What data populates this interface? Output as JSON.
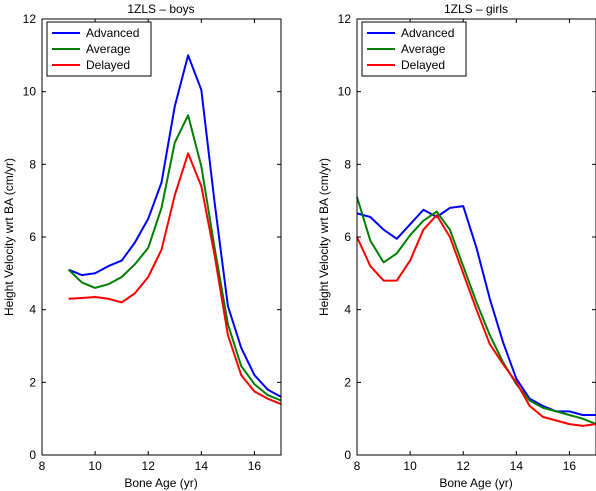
{
  "chart_data": [
    {
      "type": "line",
      "title": "1ZLS – boys",
      "xlabel": "Bone Age (yr)",
      "ylabel": "Height Velocity wrt BA (cm/yr)",
      "xlim": [
        8,
        17
      ],
      "ylim": [
        0,
        12
      ],
      "xticks": [
        8,
        10,
        12,
        14,
        16
      ],
      "yticks": [
        0,
        2,
        4,
        6,
        8,
        10,
        12
      ],
      "grid": false,
      "legend_position": "top-left",
      "series": [
        {
          "name": "Advanced",
          "color": "#0000ff",
          "x": [
            9,
            9.5,
            10,
            10.5,
            11,
            11.5,
            12,
            12.5,
            13,
            13.5,
            14,
            14.5,
            15,
            15.5,
            16,
            16.5,
            17
          ],
          "y": [
            5.1,
            4.95,
            5.0,
            5.2,
            5.35,
            5.85,
            6.5,
            7.5,
            9.6,
            11.0,
            10.05,
            6.95,
            4.1,
            2.95,
            2.2,
            1.8,
            1.6
          ]
        },
        {
          "name": "Average",
          "color": "#008000",
          "x": [
            9,
            9.5,
            10,
            10.5,
            11,
            11.5,
            12,
            12.5,
            13,
            13.5,
            14,
            14.5,
            15,
            15.5,
            16,
            16.5,
            17
          ],
          "y": [
            5.1,
            4.75,
            4.6,
            4.7,
            4.9,
            5.25,
            5.7,
            6.8,
            8.6,
            9.35,
            7.95,
            5.7,
            3.6,
            2.45,
            1.95,
            1.65,
            1.5
          ]
        },
        {
          "name": "Delayed",
          "color": "#ff0000",
          "x": [
            9,
            9.5,
            10,
            10.5,
            11,
            11.5,
            12,
            12.5,
            13,
            13.5,
            14,
            14.5,
            15,
            15.5,
            16,
            16.5,
            17
          ],
          "y": [
            4.3,
            4.32,
            4.35,
            4.3,
            4.2,
            4.45,
            4.9,
            5.65,
            7.15,
            8.3,
            7.4,
            5.5,
            3.3,
            2.2,
            1.75,
            1.55,
            1.4
          ]
        }
      ]
    },
    {
      "type": "line",
      "title": "1ZLS – girls",
      "xlabel": "Bone Age (yr)",
      "ylabel": "Height Velocity wrt BA (cm/yr)",
      "xlim": [
        8,
        17
      ],
      "ylim": [
        0,
        12
      ],
      "xticks": [
        8,
        10,
        12,
        14,
        16
      ],
      "yticks": [
        0,
        2,
        4,
        6,
        8,
        10,
        12
      ],
      "grid": false,
      "legend_position": "top-left",
      "series": [
        {
          "name": "Advanced",
          "color": "#0000ff",
          "x": [
            8,
            8.5,
            9,
            9.5,
            10,
            10.5,
            11,
            11.5,
            12,
            12.5,
            13,
            13.5,
            14,
            14.5,
            15,
            15.5,
            16,
            16.5,
            17
          ],
          "y": [
            6.65,
            6.55,
            6.2,
            5.95,
            6.35,
            6.75,
            6.55,
            6.8,
            6.85,
            5.7,
            4.3,
            3.1,
            2.1,
            1.55,
            1.35,
            1.2,
            1.2,
            1.1,
            1.1
          ]
        },
        {
          "name": "Average",
          "color": "#008000",
          "x": [
            8,
            8.5,
            9,
            9.5,
            10,
            10.5,
            11,
            11.5,
            12,
            12.5,
            13,
            13.5,
            14,
            14.5,
            15,
            15.5,
            16,
            16.5,
            17
          ],
          "y": [
            7.1,
            5.9,
            5.3,
            5.55,
            6.05,
            6.45,
            6.7,
            6.2,
            5.2,
            4.2,
            3.3,
            2.55,
            1.95,
            1.5,
            1.3,
            1.2,
            1.1,
            1.0,
            0.85
          ]
        },
        {
          "name": "Delayed",
          "color": "#ff0000",
          "x": [
            8,
            8.5,
            9,
            9.5,
            10,
            10.5,
            11,
            11.5,
            12,
            12.5,
            13,
            13.5,
            14,
            14.5,
            15,
            15.5,
            16,
            16.5,
            17
          ],
          "y": [
            6.0,
            5.2,
            4.8,
            4.8,
            5.35,
            6.2,
            6.6,
            6.0,
            5.0,
            4.0,
            3.05,
            2.5,
            2.0,
            1.35,
            1.05,
            0.95,
            0.85,
            0.8,
            0.85
          ]
        }
      ]
    }
  ]
}
